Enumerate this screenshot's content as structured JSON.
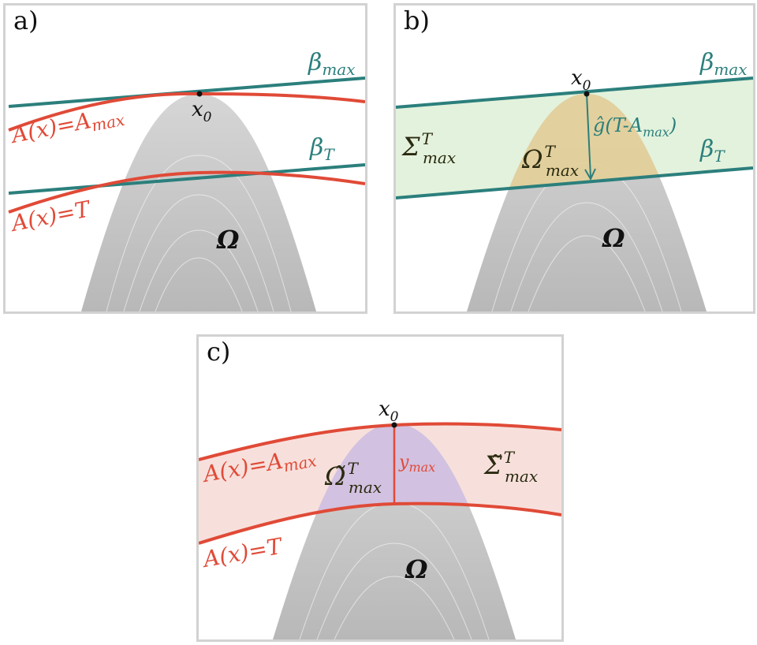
{
  "colors": {
    "teal": "#2b7f7c",
    "red": "#e04a37",
    "omega_gray": "#c4c4c4",
    "sigma_green": "#e3f2dc",
    "omega_tan": "#e3cf98",
    "sigma_tilde_pink": "#f7e0dc",
    "omega_tilde_purple": "#d2c0e0",
    "panel_border": "#d2d2d2"
  },
  "panels": {
    "a": {
      "label": "a)",
      "beta_max": {
        "base": "β",
        "sub": "max"
      },
      "beta_T": {
        "base": "β",
        "sub": "T"
      },
      "x0": {
        "base": "x",
        "sub": "0"
      },
      "A_max_curve": {
        "lhs": "A(x)",
        "eq": "=",
        "rhs_base": "A",
        "rhs_sub": "max"
      },
      "A_T_curve": {
        "text": "A(x)=T"
      },
      "omega": "Ω"
    },
    "b": {
      "label": "b)",
      "beta_max": {
        "base": "β",
        "sub": "max"
      },
      "beta_T": {
        "base": "β",
        "sub": "T"
      },
      "x0": {
        "base": "x",
        "sub": "0"
      },
      "g_hat": {
        "text": "ĝ(T-A",
        "sub": "max",
        "close": ")"
      },
      "sigma": {
        "base": "Σ",
        "sup": "T",
        "sub": "max"
      },
      "omega_T": {
        "base": "Ω",
        "sup": "T",
        "sub": "max"
      },
      "omega": "Ω"
    },
    "c": {
      "label": "c)",
      "x0": {
        "base": "x",
        "sub": "0"
      },
      "A_max_curve": {
        "lhs": "A(x)",
        "eq": "=",
        "rhs_base": "A",
        "rhs_sub": "max"
      },
      "A_T_curve": {
        "text": "A(x)=T"
      },
      "y_max": {
        "base": "y",
        "sub": "max"
      },
      "omega_tilde": {
        "base": "Ω̃",
        "sup": "T",
        "sub": "max"
      },
      "sigma_tilde": {
        "base": "Σ̃",
        "sup": "T",
        "sub": "max"
      },
      "omega": "Ω"
    }
  }
}
